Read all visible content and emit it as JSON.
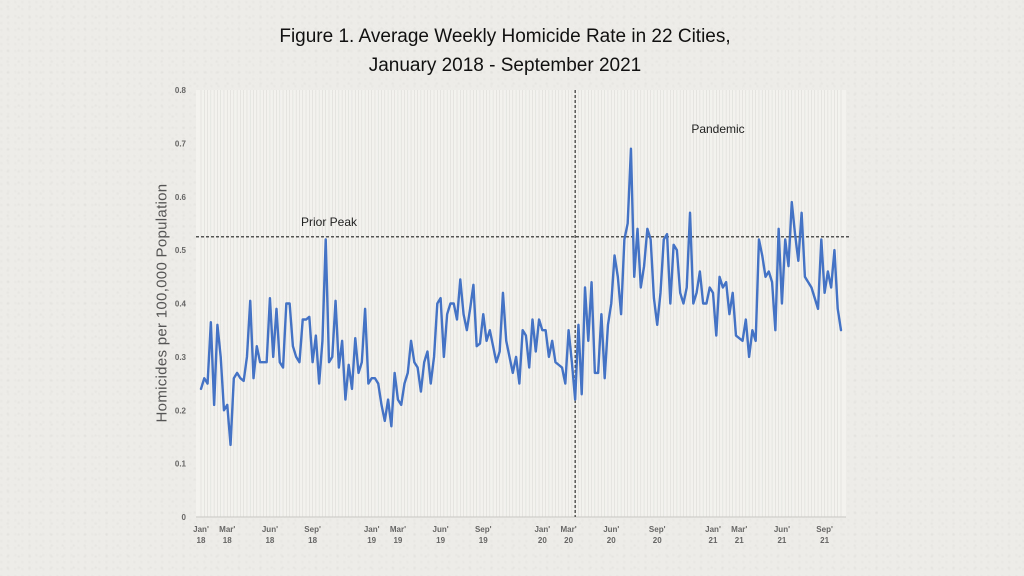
{
  "chart_data": {
    "type": "line",
    "title_line1": "Figure 1. Average Weekly Homicide Rate in 22 Cities,",
    "title_line2": "January 2018 - September 2021",
    "ylabel": "Homicides per 100,000 Population",
    "xlabel": "",
    "ylim": [
      0,
      0.8
    ],
    "yticks": [
      "0",
      "0.1",
      "0.2",
      "0.3",
      "0.4",
      "0.5",
      "0.6",
      "0.7",
      "0.8"
    ],
    "ytick_values": [
      0,
      0.1,
      0.2,
      0.3,
      0.4,
      0.5,
      0.6,
      0.7,
      0.8
    ],
    "x_tick_labels": [
      {
        "month": "Jan'",
        "year": "18",
        "week": 1
      },
      {
        "month": "Mar'",
        "year": "18",
        "week": 9
      },
      {
        "month": "Jun'",
        "year": "18",
        "week": 22
      },
      {
        "month": "Sep'",
        "year": "18",
        "week": 35
      },
      {
        "month": "Jan'",
        "year": "19",
        "week": 53
      },
      {
        "month": "Mar'",
        "year": "19",
        "week": 61
      },
      {
        "month": "Jun'",
        "year": "19",
        "week": 74
      },
      {
        "month": "Sep'",
        "year": "19",
        "week": 87
      },
      {
        "month": "Jan'",
        "year": "20",
        "week": 105
      },
      {
        "month": "Mar'",
        "year": "20",
        "week": 113
      },
      {
        "month": "Jun'",
        "year": "20",
        "week": 126
      },
      {
        "month": "Sep'",
        "year": "20",
        "week": 140
      },
      {
        "month": "Jan'",
        "year": "21",
        "week": 157
      },
      {
        "month": "Mar'",
        "year": "21",
        "week": 165
      },
      {
        "month": "Jun'",
        "year": "21",
        "week": 178
      },
      {
        "month": "Sep'",
        "year": "21",
        "week": 191
      }
    ],
    "grid": true,
    "legend": "none",
    "reference_lines": {
      "prior_peak": {
        "label": "Prior Peak",
        "y": 0.525
      },
      "pandemic": {
        "label": "Pandemic",
        "week": 115
      }
    },
    "series_color": "#4472C4",
    "series": [
      {
        "name": "",
        "x_unit": "week",
        "values": [
          0.24,
          0.26,
          0.25,
          0.365,
          0.21,
          0.36,
          0.3,
          0.2,
          0.21,
          0.135,
          0.26,
          0.27,
          0.26,
          0.255,
          0.3,
          0.405,
          0.26,
          0.32,
          0.29,
          0.29,
          0.29,
          0.41,
          0.3,
          0.39,
          0.29,
          0.28,
          0.4,
          0.4,
          0.32,
          0.3,
          0.29,
          0.37,
          0.37,
          0.375,
          0.29,
          0.34,
          0.25,
          0.33,
          0.52,
          0.29,
          0.3,
          0.405,
          0.28,
          0.33,
          0.22,
          0.285,
          0.24,
          0.335,
          0.27,
          0.29,
          0.39,
          0.25,
          0.26,
          0.26,
          0.25,
          0.21,
          0.18,
          0.22,
          0.17,
          0.27,
          0.22,
          0.21,
          0.25,
          0.27,
          0.33,
          0.29,
          0.28,
          0.235,
          0.29,
          0.31,
          0.25,
          0.3,
          0.4,
          0.41,
          0.3,
          0.38,
          0.4,
          0.4,
          0.37,
          0.445,
          0.38,
          0.35,
          0.39,
          0.435,
          0.32,
          0.325,
          0.38,
          0.33,
          0.35,
          0.32,
          0.29,
          0.31,
          0.42,
          0.33,
          0.3,
          0.27,
          0.3,
          0.25,
          0.35,
          0.34,
          0.28,
          0.37,
          0.31,
          0.37,
          0.35,
          0.35,
          0.3,
          0.33,
          0.29,
          0.285,
          0.28,
          0.25,
          0.35,
          0.29,
          0.22,
          0.36,
          0.23,
          0.43,
          0.33,
          0.44,
          0.27,
          0.27,
          0.38,
          0.26,
          0.36,
          0.4,
          0.49,
          0.45,
          0.38,
          0.52,
          0.55,
          0.69,
          0.45,
          0.54,
          0.43,
          0.47,
          0.54,
          0.52,
          0.41,
          0.36,
          0.42,
          0.52,
          0.53,
          0.4,
          0.51,
          0.5,
          0.42,
          0.4,
          0.43,
          0.57,
          0.4,
          0.42,
          0.46,
          0.4,
          0.4,
          0.43,
          0.42,
          0.34,
          0.45,
          0.43,
          0.44,
          0.38,
          0.42,
          0.34,
          0.335,
          0.33,
          0.37,
          0.3,
          0.35,
          0.33,
          0.52,
          0.49,
          0.45,
          0.46,
          0.44,
          0.35,
          0.54,
          0.4,
          0.52,
          0.47,
          0.59,
          0.53,
          0.48,
          0.57,
          0.45,
          0.44,
          0.43,
          0.41,
          0.39,
          0.52,
          0.42,
          0.46,
          0.43,
          0.5,
          0.39,
          0.35
        ]
      }
    ]
  }
}
